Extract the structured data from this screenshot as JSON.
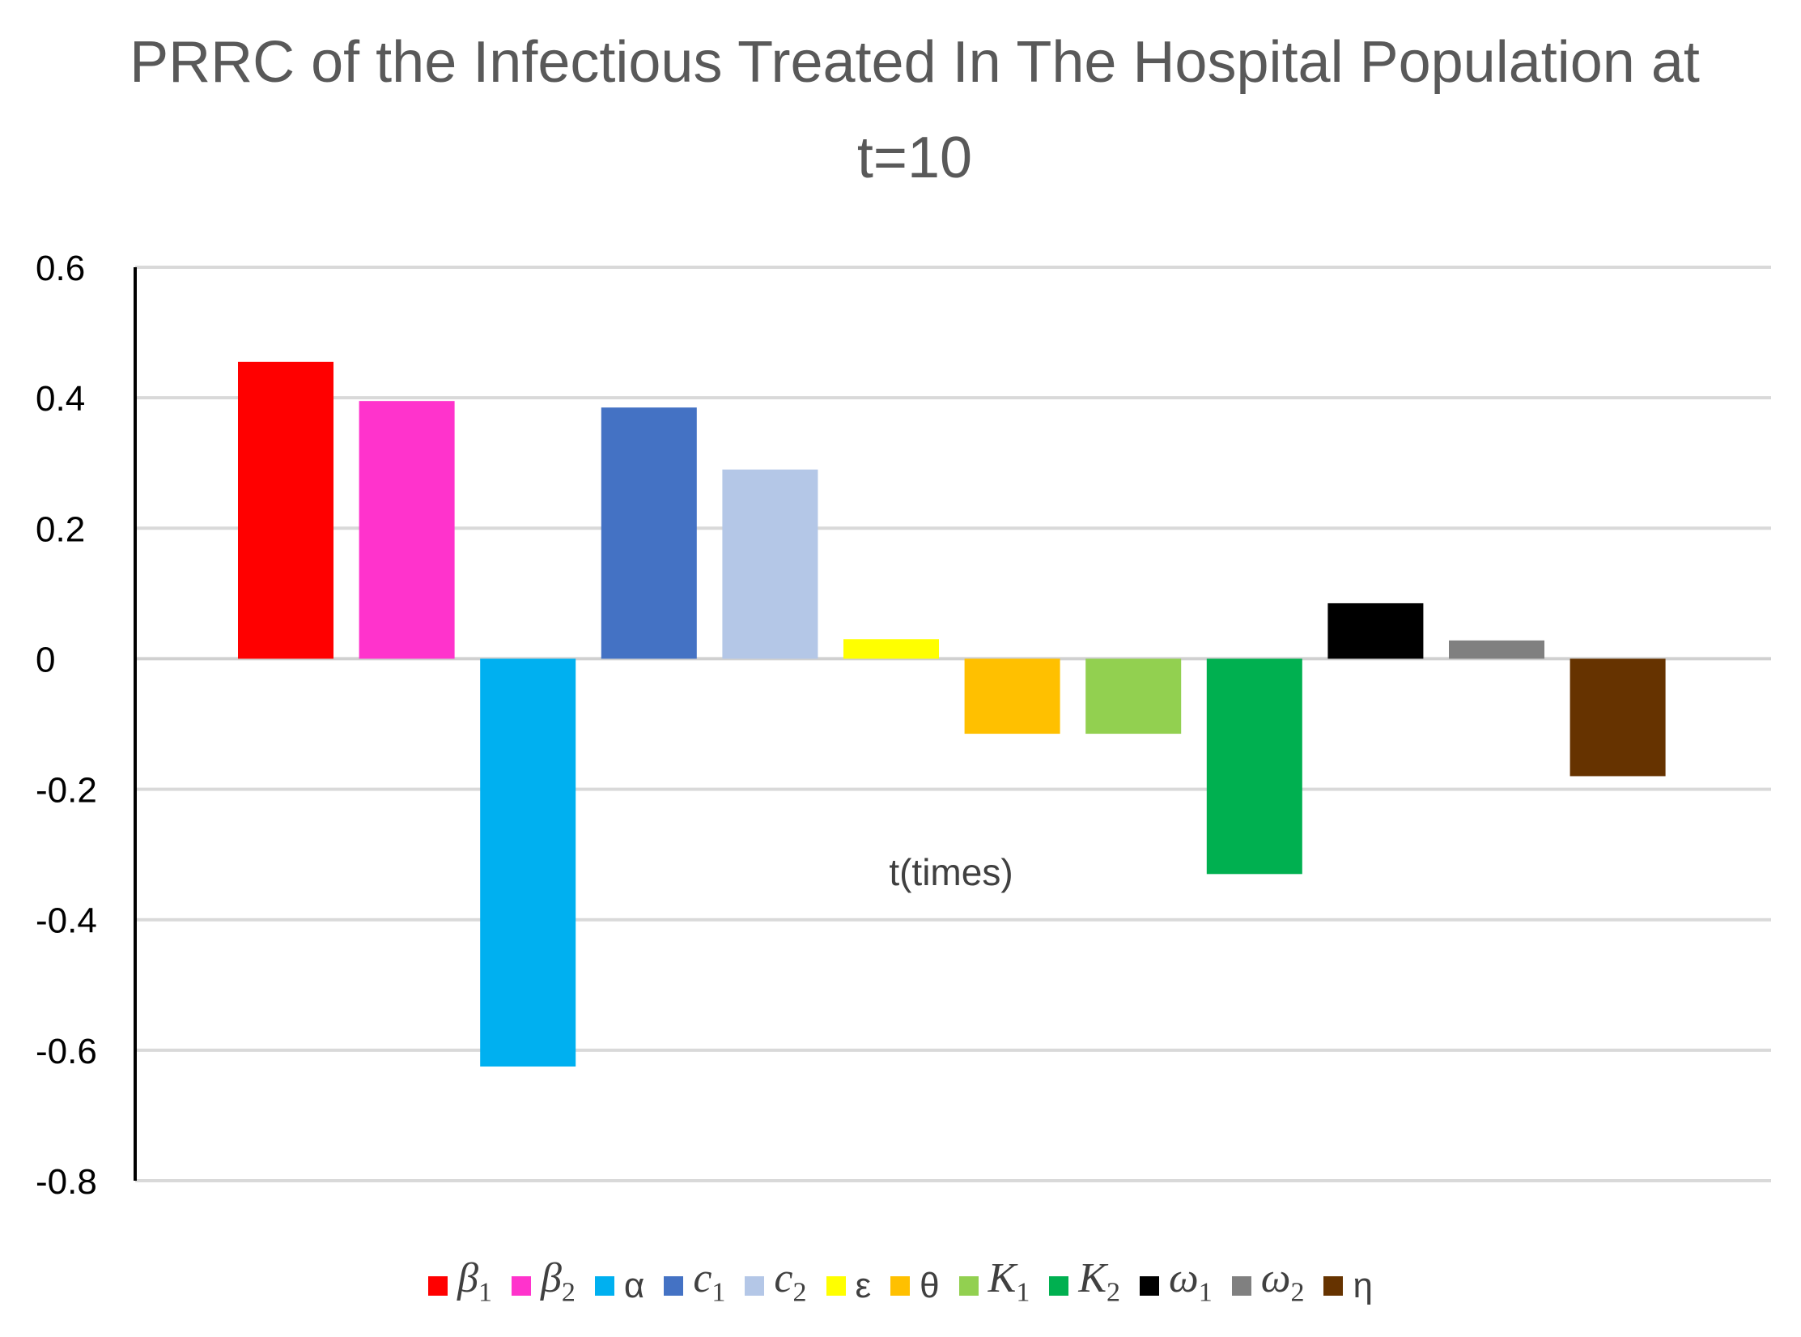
{
  "chart_data": {
    "type": "bar",
    "title_lines": [
      "PRRC of the Infectious Treated In The Hospital Population at",
      "t=10"
    ],
    "xlabel": "t(times)",
    "ylabel": "",
    "ylim": [
      -0.8,
      0.6
    ],
    "yticks": [
      0.6,
      0.4,
      0.2,
      0,
      -0.2,
      -0.4,
      -0.6,
      -0.8
    ],
    "ytick_labels": [
      "0.6",
      "0.4",
      "0.2",
      "0",
      "-0.2",
      "-0.4",
      "-0.6",
      "-0.8"
    ],
    "grid": true,
    "legend_position": "bottom",
    "series": [
      {
        "name": "β1",
        "base": "β",
        "sub": "1",
        "value": 0.455,
        "color": "#FF0000"
      },
      {
        "name": "β2",
        "base": "β",
        "sub": "2",
        "value": 0.395,
        "color": "#FF33CC"
      },
      {
        "name": "α",
        "base": "α",
        "sub": "",
        "value": -0.625,
        "color": "#00B0F0"
      },
      {
        "name": "c1",
        "base": "c",
        "sub": "1",
        "value": 0.385,
        "color": "#4472C4"
      },
      {
        "name": "c2",
        "base": "c",
        "sub": "2",
        "value": 0.29,
        "color": "#B4C7E7"
      },
      {
        "name": "ε",
        "base": "ε",
        "sub": "",
        "value": 0.03,
        "color": "#FFFF00"
      },
      {
        "name": "θ",
        "base": "θ",
        "sub": "",
        "value": -0.115,
        "color": "#FFC000"
      },
      {
        "name": "K1",
        "base": "K",
        "sub": "1",
        "value": -0.115,
        "color": "#92D050"
      },
      {
        "name": "K2",
        "base": "K",
        "sub": "2",
        "value": -0.33,
        "color": "#00B050"
      },
      {
        "name": "ω1",
        "base": "ω",
        "sub": "1",
        "value": 0.085,
        "color": "#000000"
      },
      {
        "name": "ω2",
        "base": "ω",
        "sub": "2",
        "value": 0.028,
        "color": "#808080"
      },
      {
        "name": "η",
        "base": "η",
        "sub": "",
        "value": -0.18,
        "color": "#663300"
      }
    ]
  }
}
